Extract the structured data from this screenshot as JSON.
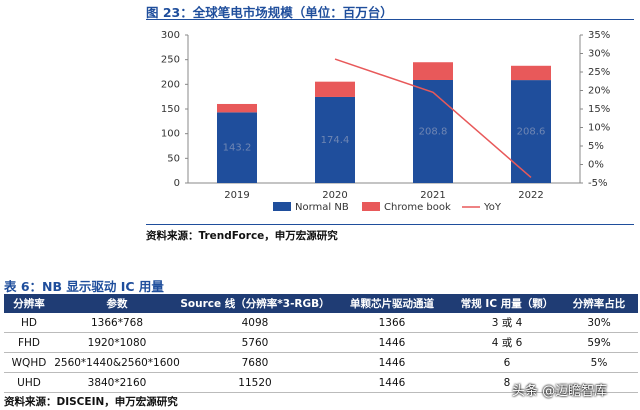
{
  "chart_data": {
    "type": "bar",
    "title": "图 23：全球笔电市场规模（单位：百万台）",
    "categories": [
      "2019",
      "2020",
      "2021",
      "2022"
    ],
    "series": [
      {
        "name": "Normal NB",
        "color": "#1f4e9c",
        "values": [
          143.2,
          174.4,
          208.8,
          208.6
        ]
      },
      {
        "name": "Chrome book",
        "color": "#e8595a",
        "values": [
          17,
          31,
          36,
          29
        ]
      },
      {
        "name": "YoY",
        "color": "#e8595a",
        "type": "line",
        "axis": "y2",
        "values": [
          null,
          28.5,
          19.5,
          -3.5
        ]
      }
    ],
    "ylim": [
      0,
      300
    ],
    "yticks": [
      0,
      50,
      100,
      150,
      200,
      250,
      300
    ],
    "y2lim": [
      -5,
      35
    ],
    "y2ticks": [
      {
        "value": -5,
        "label": "-5%"
      },
      {
        "value": 0,
        "label": "0%"
      },
      {
        "value": 5,
        "label": "5%"
      },
      {
        "value": 10,
        "label": "10%"
      },
      {
        "value": 15,
        "label": "15%"
      },
      {
        "value": 20,
        "label": "20%"
      },
      {
        "value": 25,
        "label": "25%"
      },
      {
        "value": 30,
        "label": "30%"
      },
      {
        "value": 35,
        "label": "35%"
      }
    ],
    "source": "资料来源：TrendForce，申万宏源研究"
  },
  "table": {
    "title": "表 6：NB 显示驱动 IC 用量",
    "header": [
      "分辨率",
      "参数",
      "Source 线（分辨率*3-RGB）",
      "单颗芯片驱动通道",
      "常规 IC 用量（颗）",
      "分辨率占比"
    ],
    "rows": [
      [
        "HD",
        "1366*768",
        "4098",
        "1366",
        "3 或 4",
        "30%"
      ],
      [
        "FHD",
        "1920*1080",
        "5760",
        "1446",
        "4 或 6",
        "59%"
      ],
      [
        "WQHD",
        "2560*1440&2560*1600",
        "7680",
        "1446",
        "6",
        "5%"
      ],
      [
        "UHD",
        "3840*2160",
        "11520",
        "1446",
        "8"
      ]
    ],
    "source": "资料来源：DISCEIN，申万宏源研究"
  },
  "watermark": "头条 @迈瞻智库"
}
